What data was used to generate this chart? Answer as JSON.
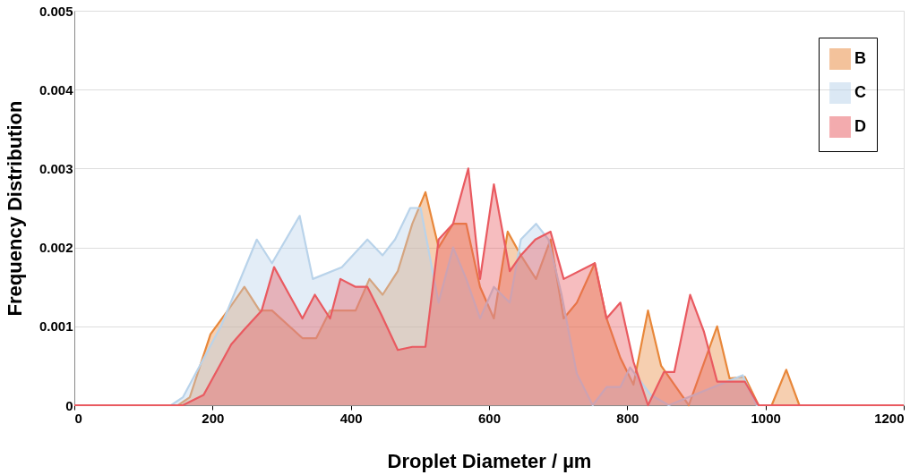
{
  "chart_data": {
    "type": "area",
    "xlabel": "Droplet Diameter / µm",
    "ylabel": "Frequency Distribution",
    "xlim": [
      0,
      1200
    ],
    "xticks": [
      0,
      200,
      400,
      600,
      800,
      1000,
      1200
    ],
    "ylim": [
      0,
      0.005
    ],
    "yticks": [
      {
        "value": 0,
        "label": "0"
      },
      0.001,
      0.002,
      0.003,
      0.004,
      0.005
    ],
    "grid": "y",
    "legend": "top right",
    "marker": "none",
    "line_style": "solid",
    "series": [
      {
        "name": "B",
        "color": "#e8873a",
        "x": [
          0,
          150,
          167,
          197,
          222,
          246,
          268,
          286,
          330,
          350,
          370,
          407,
          427,
          446,
          468,
          489,
          508,
          527,
          548,
          567,
          587,
          607,
          627,
          646,
          668,
          689,
          708,
          727,
          753,
          770,
          790,
          809,
          830,
          849,
          889,
          930,
          948,
          970,
          990,
          1009,
          1030,
          1049,
          1200
        ],
        "values": [
          0,
          0,
          0.0001,
          0.0009,
          0.0012,
          0.0015,
          0.0012,
          0.0012,
          0.00085,
          0.00085,
          0.0012,
          0.0012,
          0.0016,
          0.0014,
          0.0017,
          0.0023,
          0.0027,
          0.002,
          0.0023,
          0.0023,
          0.0015,
          0.0011,
          0.0022,
          0.0019,
          0.0016,
          0.0021,
          0.0011,
          0.0013,
          0.0018,
          0.0011,
          0.0006,
          0.00026,
          0.0012,
          0.0005,
          0,
          0.001,
          0.00034,
          0.00036,
          0,
          0,
          0.00045,
          0,
          0
        ]
      },
      {
        "name": "C",
        "color": "#b9d3ea",
        "x": [
          0,
          140,
          157,
          212,
          264,
          286,
          326,
          345,
          387,
          424,
          446,
          464,
          486,
          501,
          527,
          548,
          567,
          587,
          607,
          630,
          646,
          668,
          686,
          705,
          727,
          750,
          770,
          790,
          804,
          834,
          860,
          967,
          987,
          1200
        ],
        "values": [
          0,
          0,
          0.0001,
          0.001,
          0.0021,
          0.0018,
          0.0024,
          0.0016,
          0.00175,
          0.0021,
          0.0019,
          0.0021,
          0.0025,
          0.0025,
          0.0013,
          0.002,
          0.0016,
          0.0011,
          0.0015,
          0.0013,
          0.0021,
          0.0023,
          0.0021,
          0.0014,
          0.0004,
          0,
          0.00023,
          0.00023,
          0.00048,
          0.00013,
          0,
          0.00038,
          0,
          0
        ]
      },
      {
        "name": "D",
        "color": "#e95a60",
        "x": [
          0,
          157,
          187,
          227,
          246,
          271,
          289,
          311,
          330,
          348,
          370,
          385,
          407,
          424,
          444,
          468,
          489,
          508,
          527,
          548,
          570,
          587,
          607,
          630,
          646,
          667,
          689,
          708,
          753,
          770,
          790,
          809,
          830,
          853,
          868,
          891,
          911,
          930,
          970,
          990,
          1200
        ],
        "values": [
          0,
          0,
          0.00013,
          0.00077,
          0.00096,
          0.0012,
          0.00175,
          0.0014,
          0.0011,
          0.0014,
          0.0011,
          0.0016,
          0.0015,
          0.0015,
          0.00115,
          0.0007,
          0.00074,
          0.00074,
          0.0021,
          0.0023,
          0.003,
          0.0016,
          0.0028,
          0.0017,
          0.0019,
          0.0021,
          0.0022,
          0.0016,
          0.0018,
          0.0011,
          0.0013,
          0.00055,
          0,
          0.00042,
          0.00042,
          0.0014,
          0.00093,
          0.0003,
          0.0003,
          0,
          0
        ]
      }
    ]
  }
}
